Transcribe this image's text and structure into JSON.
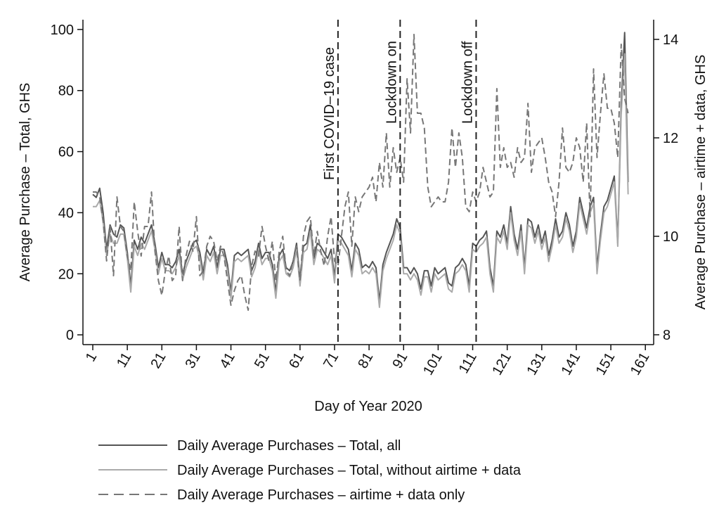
{
  "chart_data": {
    "type": "line",
    "x_label": "Day of Year 2020",
    "y_label": "Average Purchase – Total, GHS",
    "y2_label": "Average Purchase – airtime + data, GHS",
    "xlim": [
      -1.85,
      163.4
    ],
    "xticks": [
      1,
      11,
      21,
      31,
      41,
      51,
      61,
      71,
      81,
      91,
      101,
      111,
      121,
      131,
      141,
      151,
      161
    ],
    "ylim": [
      -3.2,
      103.2
    ],
    "yticks": [
      0,
      20,
      40,
      60,
      80,
      100
    ],
    "y2lim": [
      7.8,
      14.4
    ],
    "y2ticks": [
      8,
      10,
      12,
      14
    ],
    "grid": false,
    "annotations": [
      {
        "text": "First COVID–19 case",
        "x": 72
      },
      {
        "text": "Lockdown on",
        "x": 90
      },
      {
        "text": "Lockdown off",
        "x": 112
      }
    ],
    "x": [
      1,
      2,
      3,
      4,
      5,
      6,
      7,
      8,
      9,
      10,
      11,
      12,
      13,
      14,
      15,
      16,
      17,
      18,
      19,
      20,
      21,
      22,
      23,
      24,
      25,
      26,
      27,
      28,
      29,
      30,
      31,
      32,
      33,
      34,
      35,
      36,
      37,
      38,
      39,
      40,
      41,
      42,
      43,
      44,
      45,
      46,
      47,
      48,
      49,
      50,
      51,
      52,
      53,
      54,
      55,
      56,
      57,
      58,
      59,
      60,
      61,
      62,
      63,
      64,
      65,
      66,
      67,
      68,
      69,
      70,
      71,
      72,
      73,
      74,
      75,
      76,
      77,
      78,
      79,
      80,
      81,
      82,
      83,
      84,
      85,
      86,
      87,
      88,
      89,
      90,
      91,
      92,
      93,
      94,
      95,
      96,
      97,
      98,
      99,
      100,
      101,
      102,
      103,
      104,
      105,
      106,
      107,
      108,
      109,
      110,
      111,
      112,
      113,
      114,
      115,
      116,
      117,
      118,
      119,
      120,
      121,
      122,
      123,
      124,
      125,
      126,
      127,
      128,
      129,
      130,
      131,
      132,
      133,
      134,
      135,
      136,
      137,
      138,
      139,
      140,
      141,
      142,
      143,
      144,
      145,
      146,
      147,
      148,
      149,
      150,
      151,
      152,
      153,
      154,
      155,
      156
    ],
    "series": [
      {
        "name": "Daily Average Purchases – Total, all",
        "color": "#555555",
        "dash": false,
        "axis": "y",
        "values": [
          46,
          45,
          48,
          40,
          28,
          36,
          33,
          32,
          36,
          35,
          27,
          16,
          31,
          28,
          32,
          30,
          33,
          36,
          30,
          22,
          27,
          23,
          23,
          22,
          24,
          28,
          20,
          24,
          27,
          30,
          31,
          27,
          20,
          28,
          26,
          29,
          22,
          28,
          28,
          23,
          14,
          26,
          27,
          26,
          27,
          28,
          21,
          24,
          30,
          25,
          27,
          27,
          23,
          14,
          26,
          28,
          22,
          21,
          24,
          30,
          18,
          29,
          30,
          36,
          25,
          30,
          29,
          27,
          25,
          28,
          19,
          33,
          32,
          30,
          28,
          21,
          30,
          28,
          22,
          23,
          22,
          24,
          22,
          11,
          23,
          27,
          30,
          33,
          38,
          35,
          22,
          22,
          20,
          22,
          20,
          15,
          21,
          21,
          16,
          22,
          20,
          21,
          22,
          17,
          16,
          22,
          23,
          25,
          23,
          16,
          30,
          29,
          31,
          32,
          34,
          22,
          16,
          34,
          32,
          36,
          30,
          42,
          33,
          28,
          36,
          22,
          38,
          37,
          32,
          36,
          30,
          34,
          26,
          31,
          38,
          32,
          34,
          40,
          36,
          29,
          34,
          45,
          40,
          35,
          42,
          45,
          22,
          33,
          42,
          44,
          48,
          52,
          30,
          75,
          99,
          50
        ]
      },
      {
        "name": "Daily Average Purchases – Total, without airtime + data",
        "color": "#aaaaaa",
        "dash": false,
        "axis": "y",
        "values": [
          42,
          42,
          44,
          37,
          26,
          33,
          30,
          30,
          33,
          33,
          25,
          14,
          29,
          26,
          30,
          28,
          31,
          34,
          28,
          20,
          25,
          21,
          21,
          20,
          22,
          26,
          18,
          22,
          25,
          28,
          29,
          25,
          18,
          26,
          24,
          27,
          20,
          26,
          26,
          21,
          12,
          24,
          25,
          24,
          25,
          26,
          19,
          22,
          28,
          23,
          25,
          25,
          21,
          12,
          24,
          26,
          20,
          19,
          22,
          28,
          16,
          27,
          28,
          34,
          23,
          28,
          27,
          25,
          23,
          26,
          17,
          31,
          30,
          28,
          26,
          19,
          28,
          26,
          20,
          21,
          20,
          22,
          20,
          9,
          21,
          25,
          28,
          31,
          36,
          33,
          20,
          20,
          18,
          20,
          18,
          13,
          19,
          19,
          14,
          20,
          18,
          19,
          20,
          15,
          14,
          20,
          21,
          23,
          21,
          14,
          28,
          27,
          29,
          30,
          32,
          20,
          14,
          32,
          30,
          34,
          28,
          40,
          31,
          26,
          34,
          20,
          36,
          35,
          30,
          34,
          28,
          32,
          24,
          29,
          36,
          30,
          32,
          38,
          34,
          27,
          32,
          43,
          38,
          33,
          40,
          43,
          20,
          31,
          40,
          42,
          46,
          50,
          29,
          72,
          92,
          46
        ]
      },
      {
        "name": "Daily Average Purchases – airtime + data only",
        "color": "#777777",
        "dash": true,
        "axis": "y2",
        "values": [
          10.9,
          10.9,
          10.8,
          10.3,
          9.5,
          10.2,
          9.2,
          10.8,
          10.2,
          10.1,
          9.6,
          9.3,
          10.7,
          10.1,
          9.6,
          10.2,
          10.2,
          10.9,
          9.7,
          9.1,
          8.8,
          9.3,
          9.6,
          9.1,
          9.2,
          10.2,
          9.1,
          9.6,
          9.9,
          9.7,
          10.4,
          9.2,
          9.3,
          9.8,
          10.0,
          9.9,
          9.5,
          9.8,
          9.6,
          9.1,
          8.6,
          8.9,
          9.1,
          9.2,
          8.8,
          8.5,
          9.4,
          9.7,
          9.6,
          10.2,
          9.8,
          9.5,
          9.9,
          9.1,
          9.7,
          10.0,
          9.3,
          9.2,
          9.5,
          9.8,
          9.1,
          10.0,
          10.3,
          10.4,
          9.6,
          10.1,
          9.7,
          9.4,
          10.0,
          10.4,
          9.5,
          9.4,
          10.0,
          10.6,
          10.9,
          9.8,
          10.8,
          10.5,
          10.8,
          10.9,
          11.0,
          11.2,
          10.7,
          11.5,
          11.0,
          12.1,
          11.0,
          11.8,
          11.3,
          11.6,
          11.1,
          13.2,
          12.1,
          14.1,
          12.5,
          12.5,
          12.2,
          11.0,
          10.6,
          10.7,
          10.8,
          10.7,
          10.7,
          11.1,
          12.2,
          11.4,
          12.1,
          11.6,
          10.6,
          10.5,
          10.9,
          10.7,
          10.9,
          11.4,
          11.1,
          10.8,
          10.9,
          13.0,
          11.4,
          11.8,
          11.4,
          11.5,
          11.2,
          11.8,
          11.5,
          11.6,
          12.7,
          11.3,
          11.8,
          11.9,
          12.0,
          11.6,
          11.1,
          10.9,
          10.4,
          11.1,
          12.2,
          11.4,
          11.3,
          11.5,
          12.0,
          11.8,
          11.1,
          12.3,
          10.4,
          13.4,
          11.6,
          12.5,
          13.3,
          12.6,
          12.6,
          12.3,
          11.6,
          13.9,
          12.8,
          12.5
        ]
      }
    ]
  }
}
